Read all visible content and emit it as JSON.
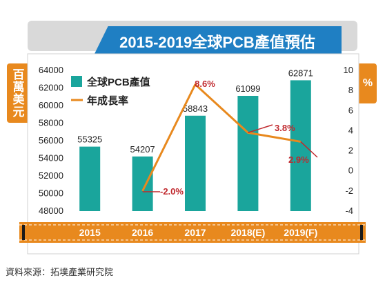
{
  "header": {
    "title": "2015-2019全球PCB產值預估"
  },
  "left_unit": "百萬美元",
  "right_unit": "%",
  "source": "資料來源：拓墣產業研究院",
  "colors": {
    "bar": "#1aa59c",
    "line": "#e8891e",
    "label_red": "#c0282d",
    "axis_band": "#e8891e",
    "title_bg": "#1f7fc3"
  },
  "chart_data": {
    "type": "bar",
    "categories": [
      "2015",
      "2016",
      "2017",
      "2018(E)",
      "2019(F)"
    ],
    "series": [
      {
        "name": "全球PCB產值",
        "type": "bar",
        "axis": "left",
        "values": [
          55325,
          54207,
          58843,
          61099,
          62871
        ]
      },
      {
        "name": "年成長率",
        "type": "line",
        "axis": "right",
        "values": [
          null,
          -2.0,
          8.6,
          3.8,
          2.9
        ]
      }
    ],
    "bar_labels": [
      "55325",
      "54207",
      "58843",
      "61099",
      "62871"
    ],
    "line_labels": [
      "",
      "-2.0%",
      "8.6%",
      "3.8%",
      "2.9%"
    ],
    "ylim_left": [
      48000,
      64000
    ],
    "yticks_left": [
      "64000",
      "62000",
      "60000",
      "58000",
      "56000",
      "54000",
      "52000",
      "50000",
      "48000"
    ],
    "ylim_right": [
      -4,
      10
    ],
    "yticks_right": [
      "10",
      "8",
      "6",
      "4",
      "2",
      "0",
      "-2",
      "-4"
    ],
    "legend_position": "top-left",
    "grid": false
  }
}
